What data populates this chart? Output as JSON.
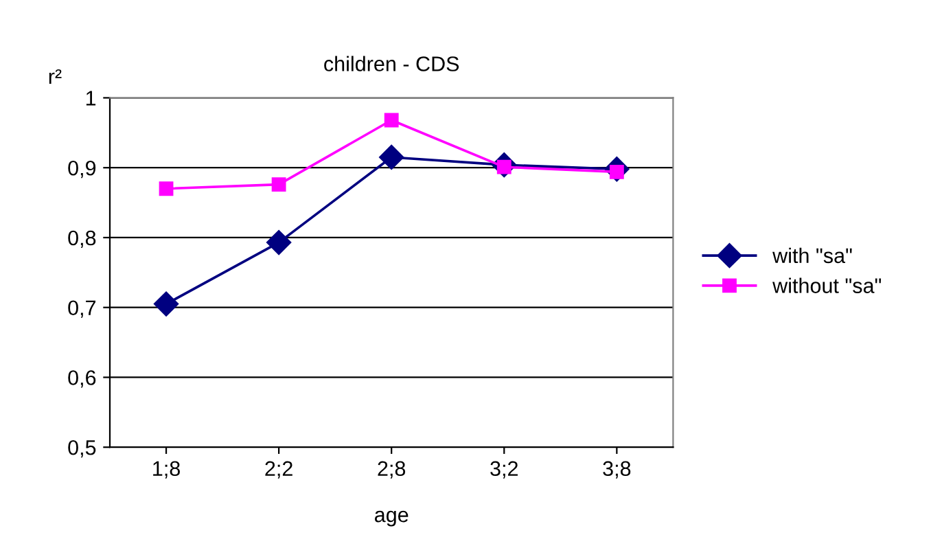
{
  "chart_data": {
    "type": "line",
    "title": "children - CDS",
    "xlabel": "age",
    "ylabel": "r²",
    "categories": [
      "1;8",
      "2;2",
      "2;8",
      "3;2",
      "3;8"
    ],
    "series": [
      {
        "name": "with \"sa\"",
        "color": "#000080",
        "values": [
          0.705,
          0.793,
          0.915,
          0.904,
          0.898
        ],
        "marker": "diamond"
      },
      {
        "name": "without \"sa\"",
        "color": "#ff00ff",
        "values": [
          0.87,
          0.876,
          0.968,
          0.901,
          0.894
        ],
        "marker": "square"
      }
    ],
    "ylim": [
      0.5,
      1
    ],
    "yticks": [
      {
        "value": 0.5,
        "label": "0,5"
      },
      {
        "value": 0.6,
        "label": "0,6"
      },
      {
        "value": 0.7,
        "label": "0,7"
      },
      {
        "value": 0.8,
        "label": "0,8"
      },
      {
        "value": 0.9,
        "label": "0,9"
      },
      {
        "value": 1,
        "label": "1"
      }
    ],
    "grid": "y",
    "legend": "right"
  }
}
